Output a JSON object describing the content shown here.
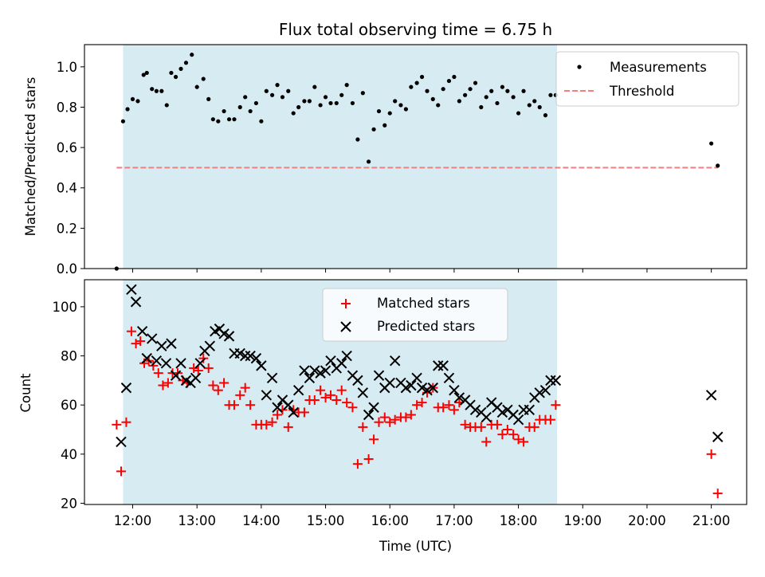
{
  "figure": {
    "title": "Flux total observing time = 6.75 h",
    "xlabel": "Time (UTC)",
    "x_ticks": [
      {
        "h": 12,
        "label": "12:00"
      },
      {
        "h": 13,
        "label": "13:00"
      },
      {
        "h": 14,
        "label": "14:00"
      },
      {
        "h": 15,
        "label": "15:00"
      },
      {
        "h": 16,
        "label": "16:00"
      },
      {
        "h": 17,
        "label": "17:00"
      },
      {
        "h": 18,
        "label": "18:00"
      },
      {
        "h": 19,
        "label": "19:00"
      },
      {
        "h": 20,
        "label": "20:00"
      },
      {
        "h": 21,
        "label": "21:00"
      }
    ],
    "xlim": [
      11.25,
      21.55
    ],
    "observing_span": [
      11.85,
      18.6
    ],
    "span_color": "#add8e6"
  },
  "chart_data": [
    {
      "type": "scatter",
      "ylabel": "Matched/Predicted stars",
      "ylim": [
        0,
        1.11
      ],
      "y_ticks": [
        "0.0",
        "0.2",
        "0.4",
        "0.6",
        "0.8",
        "1.0"
      ],
      "legend": {
        "placement": "top-right",
        "entries": [
          "Measurements",
          "Threshold"
        ]
      },
      "threshold": {
        "name": "Threshold",
        "value": 0.5,
        "x_range": [
          11.75,
          21.1
        ],
        "color": "#f08080"
      },
      "series": [
        {
          "name": "Measurements",
          "marker": "dot",
          "color": "#000000",
          "x": [
            11.75,
            11.85,
            11.92,
            12.0,
            12.08,
            12.17,
            12.22,
            12.3,
            12.37,
            12.45,
            12.53,
            12.6,
            12.67,
            12.75,
            12.83,
            12.92,
            13.0,
            13.1,
            13.18,
            13.25,
            13.33,
            13.42,
            13.5,
            13.58,
            13.67,
            13.75,
            13.83,
            13.92,
            14.0,
            14.08,
            14.17,
            14.25,
            14.33,
            14.42,
            14.5,
            14.58,
            14.67,
            14.75,
            14.83,
            14.92,
            15.0,
            15.08,
            15.17,
            15.25,
            15.33,
            15.42,
            15.5,
            15.58,
            15.67,
            15.75,
            15.83,
            15.92,
            16.0,
            16.08,
            16.17,
            16.25,
            16.33,
            16.42,
            16.5,
            16.58,
            16.67,
            16.75,
            16.83,
            16.92,
            17.0,
            17.08,
            17.17,
            17.25,
            17.33,
            17.42,
            17.5,
            17.58,
            17.67,
            17.75,
            17.83,
            17.92,
            18.0,
            18.08,
            18.17,
            18.25,
            18.33,
            18.42,
            18.5,
            18.58,
            21.0,
            21.1
          ],
          "y": [
            0.0,
            0.73,
            0.79,
            0.84,
            0.83,
            0.96,
            0.97,
            0.89,
            0.88,
            0.88,
            0.81,
            0.97,
            0.95,
            0.99,
            1.02,
            1.06,
            0.9,
            0.94,
            0.84,
            0.74,
            0.73,
            0.78,
            0.74,
            0.74,
            0.8,
            0.85,
            0.78,
            0.82,
            0.73,
            0.88,
            0.86,
            0.91,
            0.85,
            0.88,
            0.77,
            0.8,
            0.83,
            0.83,
            0.9,
            0.81,
            0.85,
            0.82,
            0.82,
            0.86,
            0.91,
            0.82,
            0.64,
            0.87,
            0.53,
            0.69,
            0.78,
            0.71,
            0.77,
            0.83,
            0.81,
            0.79,
            0.9,
            0.92,
            0.95,
            0.88,
            0.84,
            0.81,
            0.89,
            0.93,
            0.95,
            0.83,
            0.86,
            0.89,
            0.92,
            0.8,
            0.85,
            0.88,
            0.82,
            0.9,
            0.88,
            0.85,
            0.77,
            0.88,
            0.81,
            0.83,
            0.8,
            0.76,
            0.86,
            0.86,
            0.62,
            0.51
          ]
        }
      ]
    },
    {
      "type": "scatter",
      "ylabel": "Count",
      "ylim": [
        19.5,
        111
      ],
      "y_ticks": [
        "20",
        "40",
        "60",
        "80",
        "100"
      ],
      "legend": {
        "placement": "top-center",
        "entries": [
          "Matched stars",
          "Predicted stars"
        ]
      },
      "series": [
        {
          "name": "Matched stars",
          "marker": "plus",
          "color": "#ff0000",
          "x": [
            11.75,
            11.82,
            11.9,
            11.98,
            12.05,
            12.12,
            12.18,
            12.25,
            12.32,
            12.4,
            12.47,
            12.55,
            12.62,
            12.7,
            12.78,
            12.85,
            12.95,
            13.02,
            13.1,
            13.18,
            13.25,
            13.33,
            13.42,
            13.5,
            13.58,
            13.67,
            13.75,
            13.83,
            13.92,
            14.0,
            14.08,
            14.17,
            14.25,
            14.33,
            14.42,
            14.5,
            14.58,
            14.67,
            14.75,
            14.83,
            14.92,
            15.0,
            15.08,
            15.17,
            15.25,
            15.33,
            15.42,
            15.5,
            15.58,
            15.67,
            15.75,
            15.83,
            15.92,
            16.0,
            16.08,
            16.17,
            16.25,
            16.33,
            16.42,
            16.5,
            16.58,
            16.67,
            16.75,
            16.83,
            16.92,
            17.0,
            17.08,
            17.17,
            17.25,
            17.33,
            17.42,
            17.5,
            17.58,
            17.67,
            17.75,
            17.83,
            17.92,
            18.0,
            18.08,
            18.17,
            18.25,
            18.33,
            18.42,
            18.5,
            18.58,
            21.0,
            21.1
          ],
          "y": [
            52,
            33,
            53,
            90,
            85,
            86,
            77,
            78,
            76,
            73,
            68,
            69,
            73,
            73,
            70,
            69,
            75,
            74,
            79,
            75,
            68,
            66,
            69,
            60,
            60,
            64,
            67,
            60,
            52,
            52,
            52,
            53,
            56,
            58,
            51,
            58,
            57,
            57,
            62,
            62,
            66,
            63,
            64,
            62,
            66,
            61,
            59,
            36,
            51,
            38,
            46,
            53,
            55,
            53,
            54,
            55,
            55,
            56,
            60,
            61,
            65,
            67,
            59,
            59,
            60,
            58,
            61,
            52,
            51,
            51,
            51,
            45,
            52,
            52,
            48,
            50,
            48,
            46,
            45,
            51,
            51,
            54,
            54,
            54,
            60,
            40,
            24
          ]
        },
        {
          "name": "Predicted stars",
          "marker": "x",
          "color": "#000000",
          "x": [
            11.82,
            11.9,
            11.98,
            12.05,
            12.15,
            12.22,
            12.3,
            12.37,
            12.45,
            12.52,
            12.6,
            12.67,
            12.75,
            12.83,
            12.9,
            12.98,
            13.05,
            13.12,
            13.2,
            13.28,
            13.35,
            13.42,
            13.5,
            13.58,
            13.67,
            13.75,
            13.83,
            13.92,
            14.0,
            14.08,
            14.17,
            14.25,
            14.33,
            14.42,
            14.5,
            14.58,
            14.67,
            14.75,
            14.83,
            14.92,
            15.0,
            15.08,
            15.17,
            15.25,
            15.33,
            15.42,
            15.5,
            15.58,
            15.67,
            15.75,
            15.83,
            15.92,
            16.0,
            16.08,
            16.17,
            16.25,
            16.33,
            16.42,
            16.5,
            16.58,
            16.67,
            16.75,
            16.83,
            16.92,
            17.0,
            17.08,
            17.17,
            17.25,
            17.33,
            17.42,
            17.5,
            17.58,
            17.67,
            17.75,
            17.83,
            17.92,
            18.0,
            18.08,
            18.17,
            18.25,
            18.33,
            18.42,
            18.5,
            18.58,
            21.0,
            21.1
          ],
          "y": [
            45,
            67,
            107,
            102,
            90,
            79,
            87,
            78,
            84,
            77,
            85,
            72,
            77,
            70,
            69,
            71,
            77,
            82,
            84,
            90,
            91,
            89,
            88,
            81,
            81,
            80,
            80,
            79,
            76,
            64,
            71,
            59,
            62,
            60,
            57,
            66,
            74,
            71,
            74,
            73,
            74,
            78,
            75,
            77,
            80,
            72,
            70,
            65,
            56,
            59,
            72,
            67,
            69,
            78,
            69,
            67,
            68,
            71,
            67,
            66,
            67,
            76,
            76,
            71,
            66,
            63,
            62,
            60,
            58,
            57,
            55,
            61,
            59,
            57,
            58,
            56,
            54,
            58,
            58,
            63,
            65,
            66,
            70,
            70,
            64,
            47
          ]
        }
      ]
    }
  ]
}
